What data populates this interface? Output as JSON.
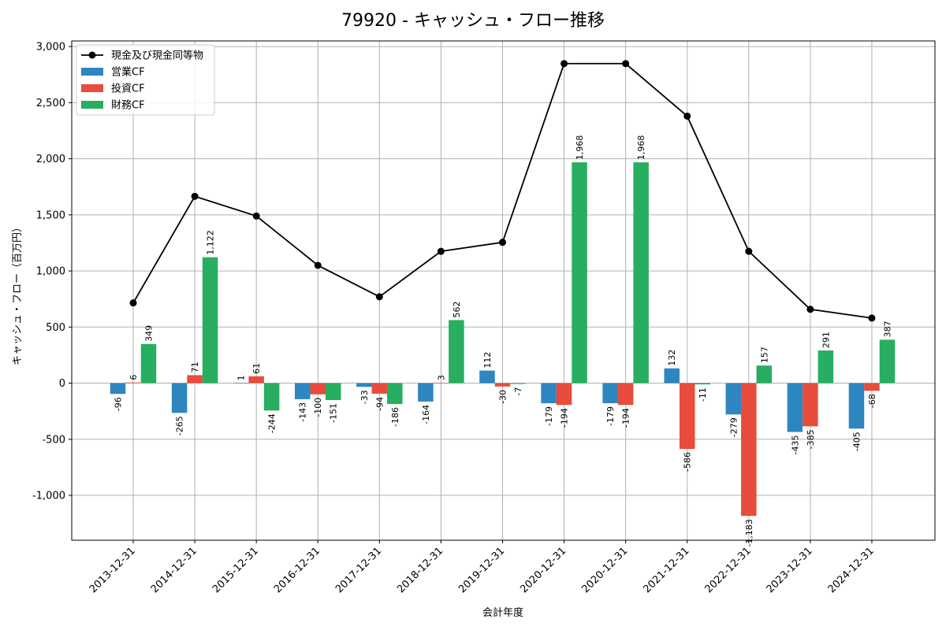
{
  "chart_data": {
    "type": "bar",
    "title": "79920 - キャッシュ・フロー推移",
    "xlabel": "会計年度",
    "ylabel": "キャッシュ・フロー（百万円）",
    "ylim": [
      -1400,
      3050
    ],
    "yticks": [
      -1000,
      -500,
      0,
      500,
      1000,
      1500,
      2000,
      2500,
      3000
    ],
    "ytick_labels": [
      "-1,000",
      "-500",
      "0",
      "500",
      "1,000",
      "1,500",
      "2,000",
      "2,500",
      "3,000"
    ],
    "grid": true,
    "legend_position": "top-left",
    "categories": [
      "2013-12-31",
      "2014-12-31",
      "2015-12-31",
      "2016-12-31",
      "2017-12-31",
      "2018-12-31",
      "2019-12-31",
      "2020-12-31",
      "2020-12-31",
      "2021-12-31",
      "2022-12-31",
      "2023-12-31",
      "2024-12-31"
    ],
    "series": [
      {
        "name": "営業CF",
        "kind": "bar",
        "color": "#2e86c1",
        "values": [
          -96,
          -265,
          1,
          -143,
          -33,
          -164,
          112,
          -179,
          -179,
          132,
          -279,
          -435,
          -405
        ],
        "labels": [
          "-96",
          "-265",
          "1",
          "-143",
          "-33",
          "-164",
          "112",
          "-179",
          "-179",
          "132",
          "-279",
          "-435",
          "-405"
        ]
      },
      {
        "name": "投資CF",
        "kind": "bar",
        "color": "#e74c3c",
        "values": [
          6,
          71,
          61,
          -100,
          -94,
          3,
          -30,
          -194,
          -194,
          -586,
          -1183,
          -385,
          -68
        ],
        "labels": [
          "6",
          "71",
          "61",
          "-100",
          "-94",
          "3",
          "-30",
          "-194",
          "-194",
          "-586",
          "-1,183",
          "-385",
          "-68"
        ]
      },
      {
        "name": "財務CF",
        "kind": "bar",
        "color": "#27ae60",
        "values": [
          349,
          1122,
          -244,
          -151,
          -186,
          562,
          -7,
          1968,
          1968,
          -11,
          157,
          291,
          387
        ],
        "labels": [
          "349",
          "1,122",
          "-244",
          "-151",
          "-186",
          "562",
          "-7",
          "1,968",
          "1,968",
          "-11",
          "157",
          "291",
          "387"
        ]
      },
      {
        "name": "現金及び現金同等物",
        "kind": "line",
        "color": "#000000",
        "values": [
          715,
          1665,
          1490,
          1050,
          770,
          1175,
          1255,
          2848,
          2848,
          2380,
          1175,
          658,
          580
        ]
      }
    ]
  }
}
